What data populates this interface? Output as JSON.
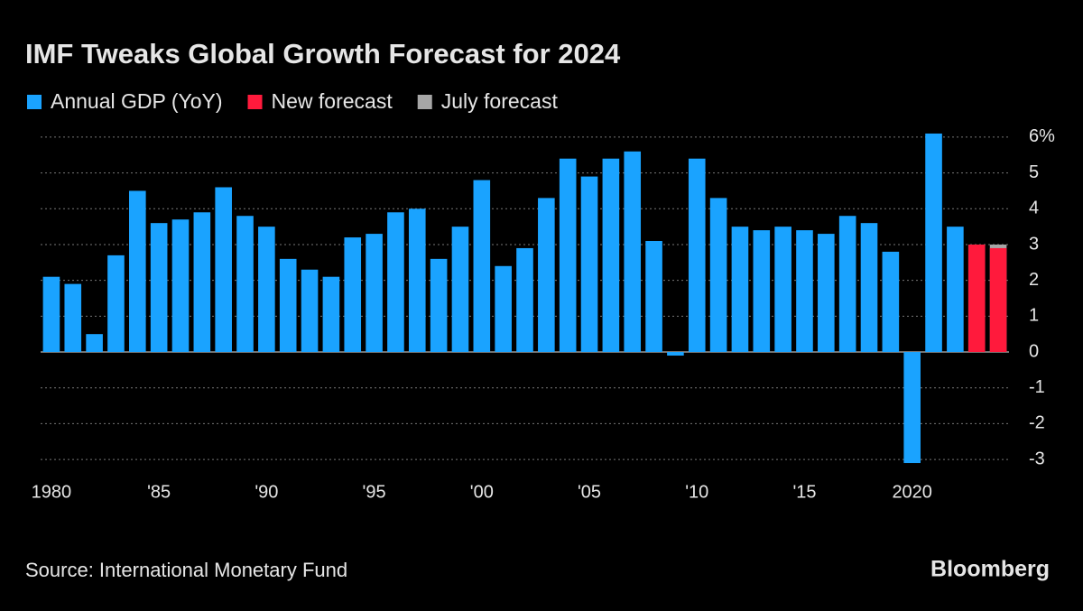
{
  "chart_data": {
    "type": "bar",
    "title": "IMF Tweaks Global Growth Forecast for 2024",
    "source": "Source: International Monetary Fund",
    "brand": "Bloomberg",
    "categories": [
      "1980",
      null,
      null,
      null,
      null,
      "'85",
      null,
      null,
      null,
      null,
      "'90",
      null,
      null,
      null,
      null,
      "'95",
      null,
      null,
      null,
      null,
      "'00",
      null,
      null,
      null,
      null,
      "'05",
      null,
      null,
      null,
      null,
      "'10",
      null,
      null,
      null,
      null,
      "'15",
      null,
      null,
      null,
      null,
      "2020",
      null,
      null,
      null,
      null
    ],
    "series": [
      {
        "name": "Annual GDP (YoY)",
        "color": "#1aa3ff",
        "values": [
          2.1,
          1.9,
          0.5,
          2.7,
          4.5,
          3.6,
          3.7,
          3.9,
          4.6,
          3.8,
          3.5,
          2.6,
          2.3,
          2.1,
          3.2,
          3.3,
          3.9,
          4.0,
          2.6,
          3.5,
          4.8,
          2.4,
          2.9,
          4.3,
          5.4,
          4.9,
          5.4,
          5.6,
          3.1,
          -0.1,
          5.4,
          4.3,
          3.5,
          3.4,
          3.5,
          3.4,
          3.3,
          3.8,
          3.6,
          2.8,
          -3.1,
          6.1,
          3.5,
          null,
          null
        ]
      },
      {
        "name": "New forecast",
        "color": "#ff1a3c",
        "values": [
          null,
          null,
          null,
          null,
          null,
          null,
          null,
          null,
          null,
          null,
          null,
          null,
          null,
          null,
          null,
          null,
          null,
          null,
          null,
          null,
          null,
          null,
          null,
          null,
          null,
          null,
          null,
          null,
          null,
          null,
          null,
          null,
          null,
          null,
          null,
          null,
          null,
          null,
          null,
          null,
          null,
          null,
          null,
          3.0,
          2.9
        ]
      },
      {
        "name": "July forecast",
        "color": "#a6a6a6",
        "values": [
          null,
          null,
          null,
          null,
          null,
          null,
          null,
          null,
          null,
          null,
          null,
          null,
          null,
          null,
          null,
          null,
          null,
          null,
          null,
          null,
          null,
          null,
          null,
          null,
          null,
          null,
          null,
          null,
          null,
          null,
          null,
          null,
          null,
          null,
          null,
          null,
          null,
          null,
          null,
          null,
          null,
          null,
          null,
          3.0,
          3.0
        ]
      }
    ],
    "ylim": [
      -3.2,
      6.2
    ],
    "yticks": [
      -3,
      -2,
      -1,
      0,
      1,
      2,
      3,
      4,
      5,
      {
        "value": 6,
        "label": "6%"
      }
    ],
    "grid": true
  }
}
